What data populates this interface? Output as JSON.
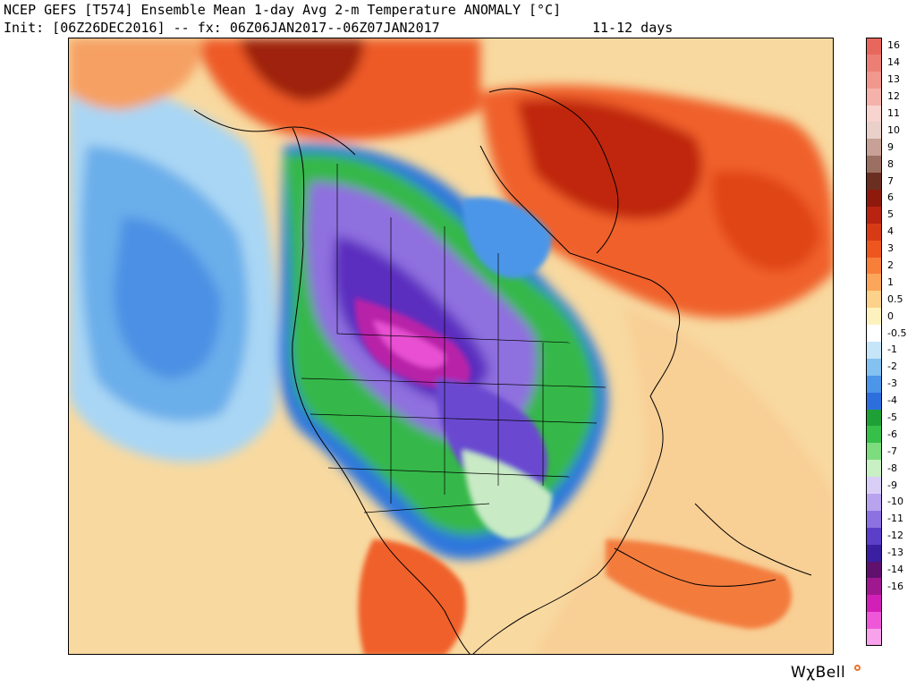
{
  "header": {
    "line1": "NCEP GEFS [T574] Ensemble Mean 1-day Avg 2-m Temperature ANOMALY [°C]",
    "line2": "Init: [06Z26DEC2016] -- fx: 06Z06JAN2017--06Z07JAN2017",
    "lead": "11-12 days"
  },
  "legend": {
    "unit": "°C",
    "items": [
      {
        "label": "16",
        "color": "#e8675c"
      },
      {
        "label": "14",
        "color": "#ec7f75"
      },
      {
        "label": "13",
        "color": "#f1978e"
      },
      {
        "label": "12",
        "color": "#f5b2aa"
      },
      {
        "label": "11",
        "color": "#f8d4cf"
      },
      {
        "label": "10",
        "color": "#e9d0c9"
      },
      {
        "label": "9",
        "color": "#c7a196"
      },
      {
        "label": "8",
        "color": "#9c6f63"
      },
      {
        "label": "7",
        "color": "#6b2f22"
      },
      {
        "label": "6",
        "color": "#8d1a0c"
      },
      {
        "label": "5",
        "color": "#b82312"
      },
      {
        "label": "4",
        "color": "#d83a16"
      },
      {
        "label": "3",
        "color": "#ee5620"
      },
      {
        "label": "2",
        "color": "#f77f3a"
      },
      {
        "label": "1",
        "color": "#fba65b"
      },
      {
        "label": "0.5",
        "color": "#fcd189"
      },
      {
        "label": "0",
        "color": "#fdf2bd"
      },
      {
        "label": "-0.5",
        "color": "#ffffff"
      },
      {
        "label": "-1",
        "color": "#c7e5f8"
      },
      {
        "label": "-2",
        "color": "#82c1f0"
      },
      {
        "label": "-3",
        "color": "#4b96e8"
      },
      {
        "label": "-4",
        "color": "#2c6fdc"
      },
      {
        "label": "-5",
        "color": "#1fa036"
      },
      {
        "label": "-6",
        "color": "#36c04a"
      },
      {
        "label": "-7",
        "color": "#7ddc7e"
      },
      {
        "label": "-8",
        "color": "#c8f0c4"
      },
      {
        "label": "-9",
        "color": "#d9cef6"
      },
      {
        "label": "-10",
        "color": "#b7a3ee"
      },
      {
        "label": "-11",
        "color": "#8c72e0"
      },
      {
        "label": "-12",
        "color": "#5c3fc8"
      },
      {
        "label": "-13",
        "color": "#3a1fa0"
      },
      {
        "label": "-14",
        "color": "#60106d"
      },
      {
        "label": "-16",
        "color": "#a01890"
      },
      {
        "label": "",
        "color": "#d21fb8"
      },
      {
        "label": "",
        "color": "#ee58d8"
      },
      {
        "label": "",
        "color": "#f7a2ea"
      }
    ]
  },
  "brand": {
    "text": "WχBell",
    "dot_color": "#e8732a"
  }
}
